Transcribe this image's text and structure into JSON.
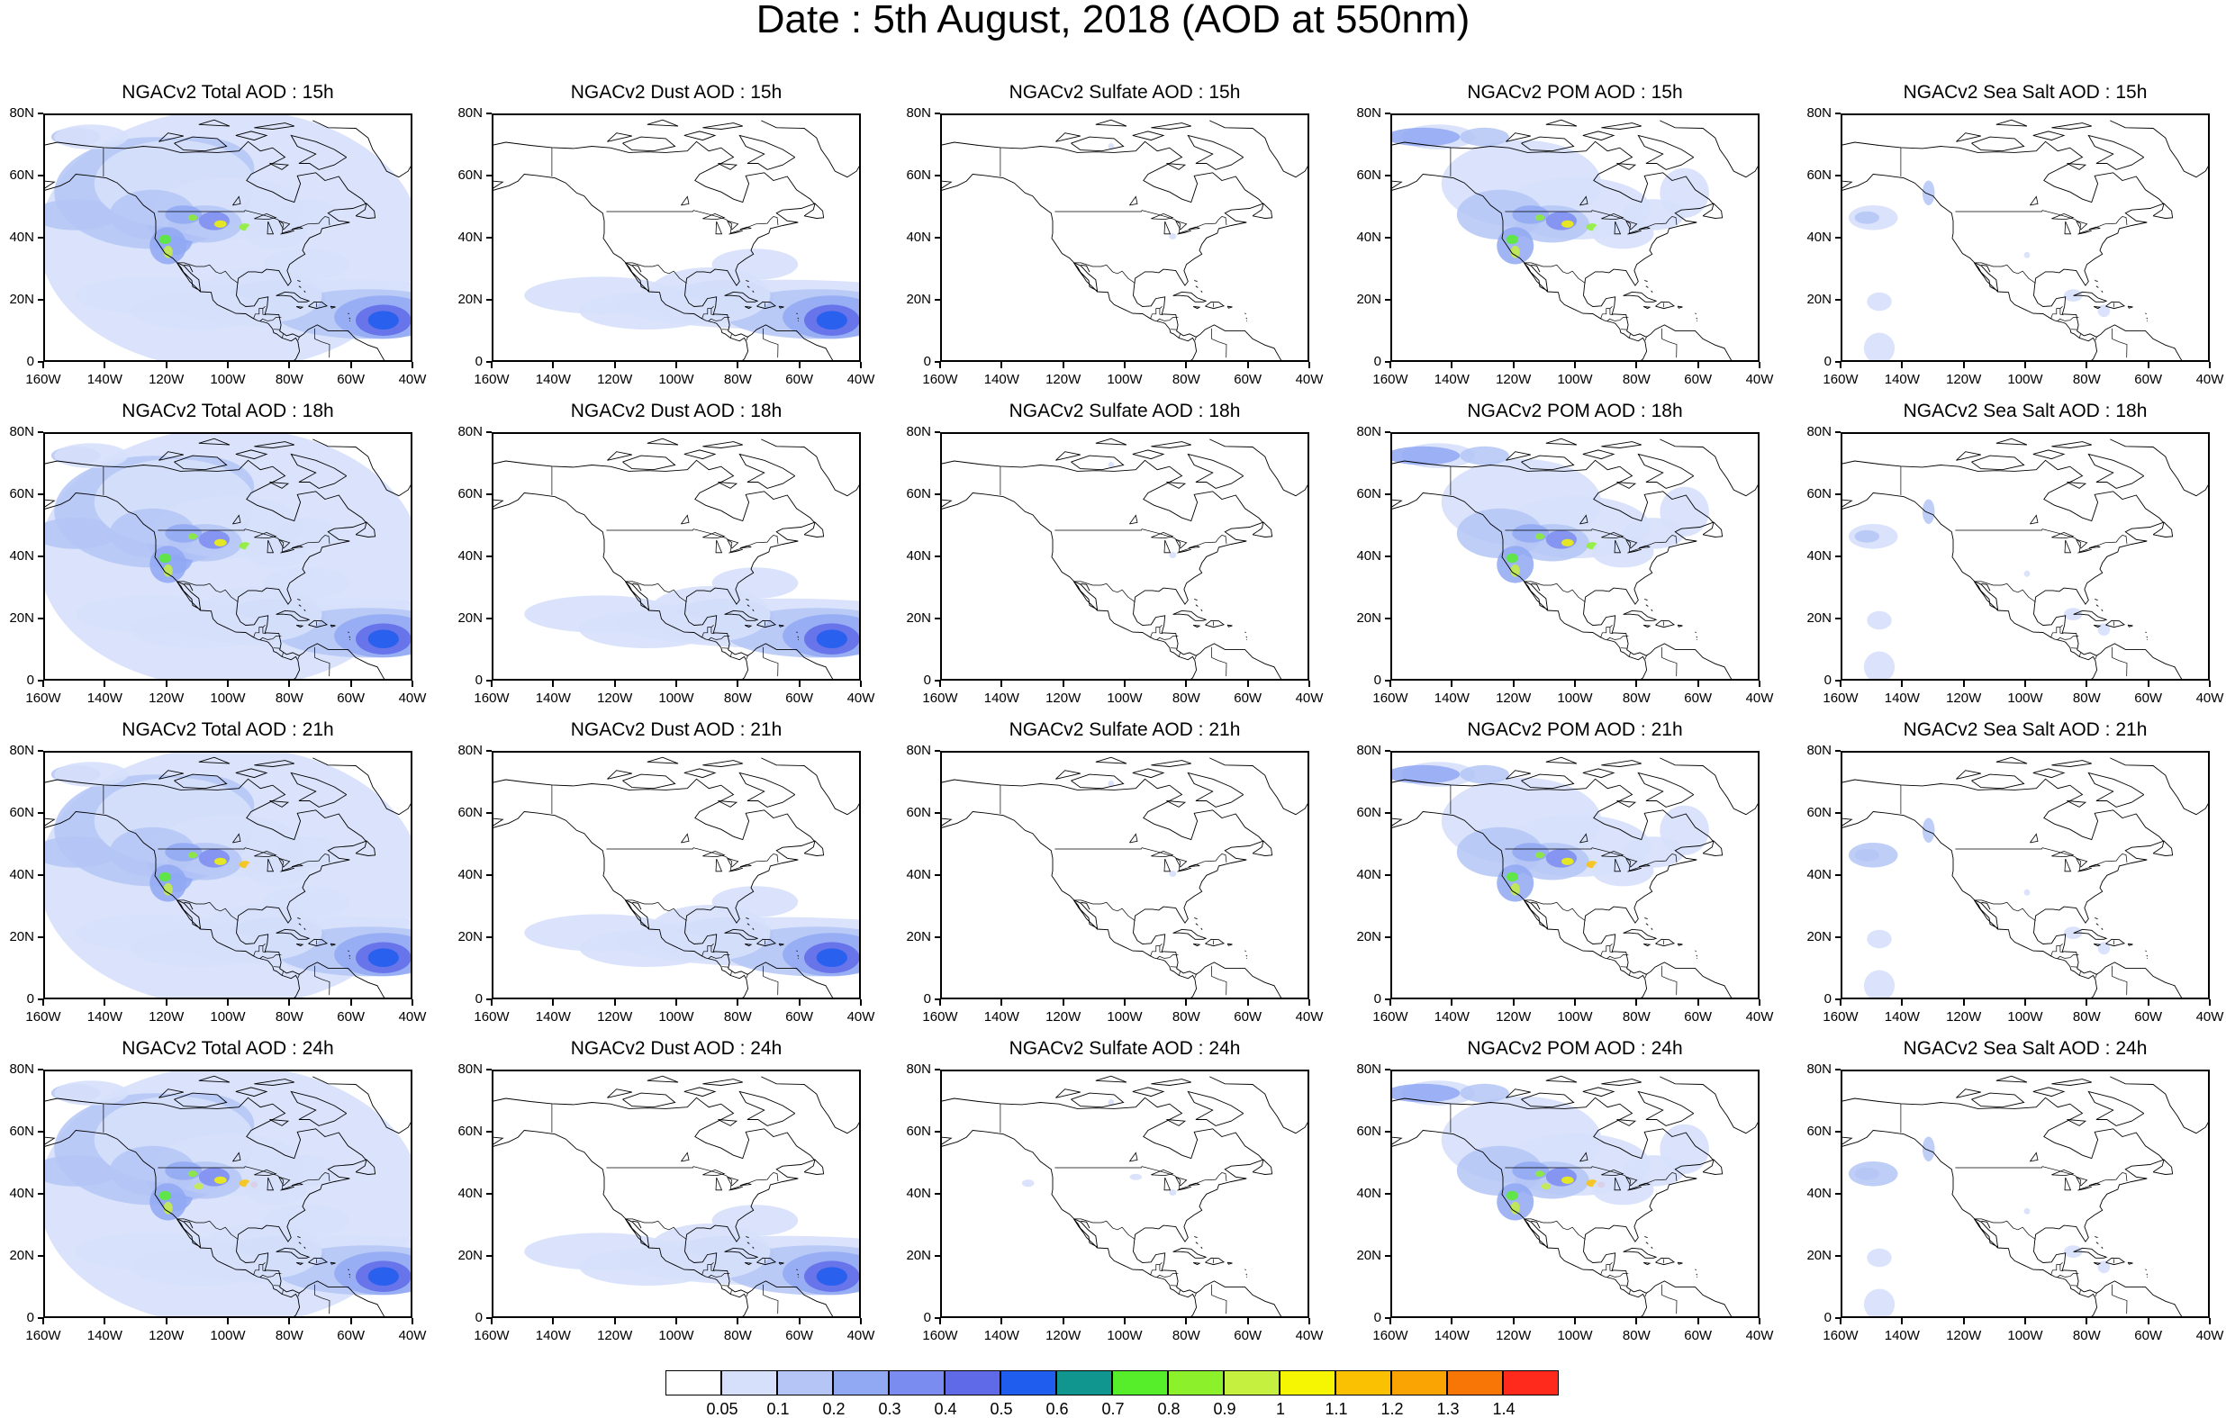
{
  "title": "Date : 5th August, 2018 (AOD at 550nm)",
  "panels": [
    [
      "NGACv2 Total AOD : 15h",
      "NGACv2 Dust AOD : 15h",
      "NGACv2 Sulfate AOD : 15h",
      "NGACv2 POM AOD : 15h",
      "NGACv2 Sea Salt AOD : 15h"
    ],
    [
      "NGACv2 Total AOD : 18h",
      "NGACv2 Dust AOD : 18h",
      "NGACv2 Sulfate AOD : 18h",
      "NGACv2 POM AOD : 18h",
      "NGACv2 Sea Salt AOD : 18h"
    ],
    [
      "NGACv2 Total AOD : 21h",
      "NGACv2 Dust AOD : 21h",
      "NGACv2 Sulfate AOD : 21h",
      "NGACv2 POM AOD : 21h",
      "NGACv2 Sea Salt AOD : 21h"
    ],
    [
      "NGACv2 Total AOD : 24h",
      "NGACv2 Dust AOD : 24h",
      "NGACv2 Sulfate AOD : 24h",
      "NGACv2 POM AOD : 24h",
      "NGACv2 Sea Salt  AOD : 24h"
    ]
  ],
  "panel_types": [
    "total",
    "dust",
    "sulfate",
    "pom",
    "seasalt"
  ],
  "lat_ticks": [
    "80N",
    "60N",
    "40N",
    "20N",
    "0"
  ],
  "lon_ticks": [
    "160W",
    "140W",
    "120W",
    "100W",
    "80W",
    "60W",
    "40W"
  ],
  "map_extent": {
    "lon_min": -160,
    "lon_max": -40,
    "lat_min": 0,
    "lat_max": 80
  },
  "colorbar": {
    "colors": [
      "#ffffff",
      "#d6e0fb",
      "#b4c5f6",
      "#91a8f3",
      "#7b8cf0",
      "#5e6ae8",
      "#1f5dee",
      "#10968f",
      "#56ee2a",
      "#8cf02a",
      "#c5f040",
      "#f6f602",
      "#fac102",
      "#f9a402",
      "#f77606",
      "#ff2a1c"
    ],
    "labels": [
      "0.05",
      "0.1",
      "0.2",
      "0.3",
      "0.4",
      "0.5",
      "0.6",
      "0.7",
      "0.8",
      "0.9",
      "1",
      "1.1",
      "1.2",
      "1.3",
      "1.4"
    ]
  }
}
